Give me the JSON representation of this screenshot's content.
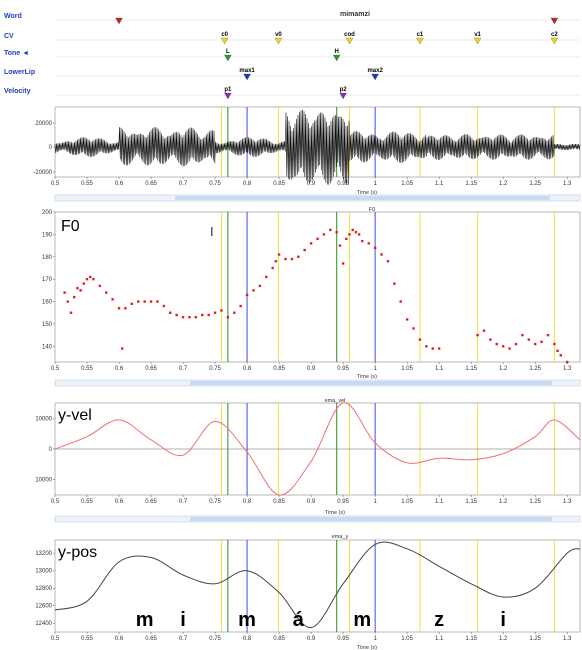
{
  "colors": {
    "tier_label": "#1f3fbf",
    "guide_yellow": "#f0e040",
    "guide_blue": "#3a4ee0",
    "guide_green": "#2e8b2e",
    "guide_gray": "#555555",
    "f0_points": "#e02020",
    "vel_curve": "#f07070",
    "pos_curve": "#444444",
    "scroll_fill": "#c8daf0"
  },
  "tiers": {
    "word": {
      "label": "Word",
      "text": "mimamzi",
      "markers": [
        {
          "t": 0.6,
          "color": "#c02020"
        },
        {
          "t": 1.28,
          "color": "#c02020"
        }
      ]
    },
    "cv": {
      "label": "CV",
      "markers": [
        {
          "label": "c0",
          "t": 0.765,
          "color": "#e8d820"
        },
        {
          "label": "v0",
          "t": 0.849,
          "color": "#e8d820"
        },
        {
          "label": "cod",
          "t": 0.96,
          "color": "#e8d820"
        },
        {
          "label": "c1",
          "t": 1.07,
          "color": "#e8d820"
        },
        {
          "label": "v1",
          "t": 1.16,
          "color": "#e8d820"
        },
        {
          "label": "c2",
          "t": 1.28,
          "color": "#e8d820"
        }
      ]
    },
    "tone": {
      "label": "Tone ◄",
      "markers": [
        {
          "label": "L",
          "t": 0.77,
          "color": "#20a020"
        },
        {
          "label": "H",
          "t": 0.94,
          "color": "#20a020"
        }
      ]
    },
    "lowerlip": {
      "label": "LowerLip",
      "markers": [
        {
          "label": "max1",
          "t": 0.8,
          "color": "#2030c0"
        },
        {
          "label": "max2",
          "t": 1.0,
          "color": "#2030c0"
        }
      ]
    },
    "velocity": {
      "label": "Velocity",
      "markers": [
        {
          "label": "p1",
          "t": 0.77,
          "color": "#8030c0"
        },
        {
          "label": "p2",
          "t": 0.95,
          "color": "#8030c0"
        }
      ]
    }
  },
  "guides": [
    {
      "t": 0.76,
      "color": "#f0e040"
    },
    {
      "t": 0.77,
      "color": "#2e8b2e"
    },
    {
      "t": 0.8,
      "color": "#3a4ee0"
    },
    {
      "t": 0.849,
      "color": "#f0e040"
    },
    {
      "t": 0.94,
      "color": "#2e8b2e"
    },
    {
      "t": 0.96,
      "color": "#f0e040"
    },
    {
      "t": 1.0,
      "color": "#3a4ee0"
    },
    {
      "t": 1.07,
      "color": "#f0e040"
    },
    {
      "t": 1.16,
      "color": "#f0e040"
    },
    {
      "t": 1.28,
      "color": "#f0e040"
    }
  ],
  "time_axis": {
    "xlim": [
      0.5,
      1.32
    ],
    "ticks": [
      "0.5",
      "0.55",
      "0.6",
      "0.65",
      "0.7",
      "0.75",
      "0.8",
      "0.85",
      "0.9",
      "0.95",
      "1",
      "1.05",
      "1.1",
      "1.15",
      "1.2",
      "1.25",
      "1.3"
    ],
    "label": "Time (s)"
  },
  "waveform": {
    "yticks": [
      "20000",
      "0",
      "-20000"
    ],
    "ylim": [
      -20000,
      20000
    ]
  },
  "f0_panel": {
    "big_label": "F0",
    "title": "F0",
    "yticks": [
      "200",
      "190",
      "180",
      "170",
      "160",
      "150",
      "140"
    ],
    "ylim": [
      133,
      200
    ],
    "cursor_glyph": "I"
  },
  "vel_panel": {
    "big_label": "y-vel",
    "title": "ema_vel",
    "yticks": [
      "10000",
      "0",
      "10000"
    ],
    "ylim": [
      -15000,
      15000
    ]
  },
  "pos_panel": {
    "big_label": "y-pos",
    "title": "ema_y",
    "yticks": [
      "13200",
      "13000",
      "12800",
      "12600",
      "12400"
    ],
    "ylim": [
      12300,
      13350
    ],
    "segments": [
      {
        "text": "m",
        "t": 0.64
      },
      {
        "text": "i",
        "t": 0.7
      },
      {
        "text": "m",
        "t": 0.8
      },
      {
        "text": "á",
        "t": 0.88
      },
      {
        "text": "m",
        "t": 0.98
      },
      {
        "text": "z",
        "t": 1.1
      },
      {
        "text": "i",
        "t": 1.2
      }
    ]
  },
  "chart_data": [
    {
      "type": "scatter",
      "title": "F0",
      "xlabel": "Time (s)",
      "ylabel": "",
      "xlim": [
        0.5,
        1.32
      ],
      "ylim": [
        133,
        200
      ],
      "series": [
        {
          "x": [
            0.515,
            0.52,
            0.525,
            0.53,
            0.535,
            0.54,
            0.545,
            0.55,
            0.555,
            0.56,
            0.57,
            0.58,
            0.59,
            0.6,
            0.605,
            0.61,
            0.62,
            0.63,
            0.64,
            0.65,
            0.66,
            0.67,
            0.68,
            0.69,
            0.7,
            0.71,
            0.72,
            0.73,
            0.74,
            0.75,
            0.76,
            0.77,
            0.78,
            0.79,
            0.8,
            0.81,
            0.82,
            0.83,
            0.84,
            0.845,
            0.85,
            0.86,
            0.87,
            0.88,
            0.89,
            0.9,
            0.91,
            0.92,
            0.93,
            0.94,
            0.945,
            0.95,
            0.955,
            0.96,
            0.965,
            0.97,
            0.975,
            0.98,
            0.99,
            1.0,
            1.01,
            1.02,
            1.03,
            1.04,
            1.05,
            1.06,
            1.07,
            1.08,
            1.09,
            1.1,
            1.16,
            1.17,
            1.18,
            1.19,
            1.2,
            1.21,
            1.22,
            1.23,
            1.24,
            1.25,
            1.26,
            1.27,
            1.28,
            1.285,
            1.29,
            1.3
          ],
          "y": [
            164,
            160,
            155,
            162,
            166,
            165,
            168,
            170,
            171,
            170,
            167,
            164,
            161,
            157,
            139,
            157,
            159,
            160,
            160,
            160,
            160,
            158,
            155,
            154,
            153,
            153,
            153,
            154,
            154,
            155,
            156,
            153,
            155,
            158,
            163,
            165,
            167,
            171,
            175,
            178,
            181,
            179,
            179,
            180,
            183,
            186,
            188,
            190,
            192,
            191,
            185,
            177,
            188,
            190,
            192,
            191,
            190,
            187,
            186,
            184,
            181,
            178,
            168,
            160,
            152,
            148,
            143,
            140,
            139,
            139,
            145,
            147,
            143,
            141,
            140,
            139,
            141,
            145,
            143,
            141,
            142,
            145,
            141,
            138,
            136,
            133
          ]
        }
      ]
    },
    {
      "type": "line",
      "title": "ema_vel",
      "xlabel": "Time (s)",
      "ylabel": "",
      "xlim": [
        0.5,
        1.32
      ],
      "ylim": [
        -15000,
        15000
      ],
      "series": [
        {
          "x": [
            0.5,
            0.55,
            0.6,
            0.65,
            0.7,
            0.75,
            0.8,
            0.85,
            0.9,
            0.95,
            1.0,
            1.05,
            1.1,
            1.15,
            1.2,
            1.25,
            1.28,
            1.32
          ],
          "y": [
            0,
            4000,
            9500,
            3000,
            -2000,
            9000,
            -1000,
            -15000,
            -4000,
            15000,
            2000,
            -4500,
            -3000,
            -3500,
            -1500,
            4000,
            9500,
            3000
          ]
        }
      ]
    },
    {
      "type": "line",
      "title": "ema_y",
      "xlabel": "Time (s)",
      "ylabel": "",
      "xlim": [
        0.5,
        1.32
      ],
      "ylim": [
        12300,
        13350
      ],
      "series": [
        {
          "x": [
            0.5,
            0.55,
            0.6,
            0.65,
            0.7,
            0.75,
            0.8,
            0.85,
            0.9,
            0.95,
            1.0,
            1.05,
            1.1,
            1.15,
            1.2,
            1.25,
            1.3,
            1.32
          ],
          "y": [
            12550,
            12650,
            13100,
            13150,
            12950,
            12850,
            13000,
            12750,
            12350,
            12850,
            13300,
            13250,
            13050,
            12850,
            12700,
            12800,
            13200,
            13250
          ]
        }
      ]
    }
  ]
}
